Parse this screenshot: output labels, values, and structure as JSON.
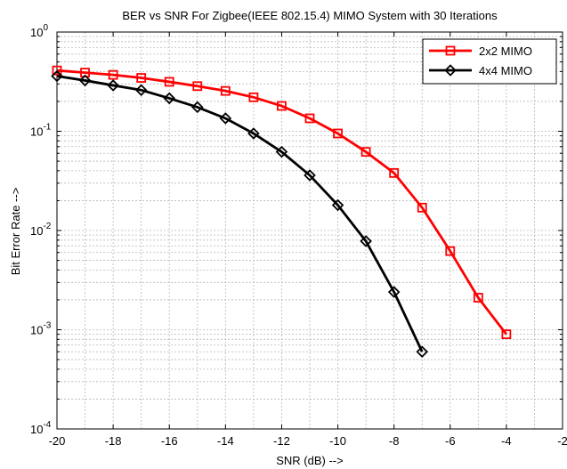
{
  "chart_data": {
    "type": "line",
    "title": "BER vs SNR For Zigbee(IEEE 802.15.4) MIMO System with 30 Iterations",
    "xlabel": "SNR (dB) -->",
    "ylabel": "Bit Error Rate -->",
    "xlim": [
      -20,
      -2
    ],
    "ylim": [
      0.0001,
      1
    ],
    "yscale": "log",
    "grid": true,
    "legend_position": "top-right",
    "x_ticks": [
      -20,
      -18,
      -16,
      -14,
      -12,
      -10,
      -8,
      -6,
      -4,
      -2
    ],
    "x_tick_labels": [
      "-20",
      "-18",
      "-16",
      "-14",
      "-12",
      "-10",
      "-8",
      "-6",
      "-4",
      "-2"
    ],
    "y_ticks": [
      0.0001,
      0.001,
      0.01,
      0.1,
      1
    ],
    "y_tick_labels": [
      {
        "base": "10",
        "exp": "-4"
      },
      {
        "base": "10",
        "exp": "-3"
      },
      {
        "base": "10",
        "exp": "-2"
      },
      {
        "base": "10",
        "exp": "-1"
      },
      {
        "base": "10",
        "exp": "0"
      }
    ],
    "series": [
      {
        "name": "2x2 MIMO",
        "color": "#ff0000",
        "marker": "square",
        "x": [
          -20,
          -19,
          -18,
          -17,
          -16,
          -15,
          -14,
          -13,
          -12,
          -11,
          -10,
          -9,
          -8,
          -7,
          -6,
          -5,
          -4
        ],
        "y": [
          0.41,
          0.39,
          0.37,
          0.345,
          0.315,
          0.285,
          0.255,
          0.22,
          0.18,
          0.135,
          0.095,
          0.062,
          0.038,
          0.017,
          0.0062,
          0.0021,
          0.0009
        ]
      },
      {
        "name": "4x4 MIMO",
        "color": "#000000",
        "marker": "diamond",
        "x": [
          -20,
          -19,
          -18,
          -17,
          -16,
          -15,
          -14,
          -13,
          -12,
          -11,
          -10,
          -9,
          -8,
          -7
        ],
        "y": [
          0.36,
          0.325,
          0.29,
          0.26,
          0.215,
          0.175,
          0.135,
          0.095,
          0.062,
          0.036,
          0.018,
          0.0078,
          0.0024,
          0.0006
        ]
      }
    ]
  }
}
